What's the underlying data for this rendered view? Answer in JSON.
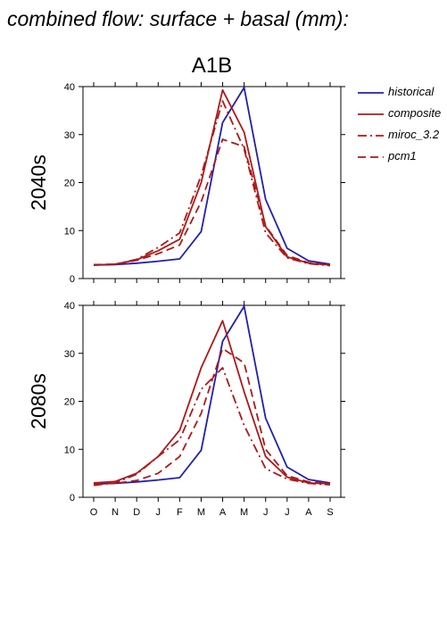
{
  "page_title": "combined flow: surface + basal (mm):",
  "colors": {
    "historical": "#2020b0",
    "future": "#b01818"
  },
  "legend": [
    {
      "name": "historical",
      "color": "#2020b0",
      "dash": ""
    },
    {
      "name": "composite",
      "color": "#b01818",
      "dash": ""
    },
    {
      "name": "miroc_3.2",
      "color": "#b01818",
      "dash": "10,4,2,4"
    },
    {
      "name": "pcm1",
      "color": "#b01818",
      "dash": "9,5"
    }
  ],
  "chart_data": [
    {
      "type": "line",
      "title": "A1B",
      "ylabel": "2040s",
      "categories": [
        "O",
        "N",
        "D",
        "J",
        "F",
        "M",
        "A",
        "M",
        "J",
        "J",
        "A",
        "S"
      ],
      "ylim": [
        0,
        40
      ],
      "yticks": [
        0,
        10,
        20,
        30,
        40
      ],
      "series": [
        {
          "name": "historical",
          "values": [
            2.8,
            2.9,
            3.2,
            3.6,
            4.1,
            9.8,
            32.5,
            39.8,
            16.5,
            6.3,
            3.7,
            3.0
          ]
        },
        {
          "name": "composite",
          "values": [
            2.8,
            3.0,
            3.9,
            5.8,
            8.2,
            20.0,
            39.3,
            30.5,
            10.8,
            4.5,
            3.2,
            2.8
          ]
        },
        {
          "name": "miroc_3.2",
          "values": [
            2.8,
            3.0,
            4.0,
            6.5,
            9.5,
            21.5,
            37.0,
            27.0,
            9.5,
            4.3,
            3.1,
            2.7
          ]
        },
        {
          "name": "pcm1",
          "values": [
            2.9,
            3.0,
            3.8,
            5.2,
            7.0,
            16.0,
            29.0,
            27.5,
            11.0,
            4.8,
            3.3,
            2.8
          ]
        }
      ]
    },
    {
      "type": "line",
      "title": "",
      "ylabel": "2080s",
      "categories": [
        "O",
        "N",
        "D",
        "J",
        "F",
        "M",
        "A",
        "M",
        "J",
        "J",
        "A",
        "S"
      ],
      "ylim": [
        0,
        40
      ],
      "yticks": [
        0,
        10,
        20,
        30,
        40
      ],
      "series": [
        {
          "name": "historical",
          "values": [
            2.8,
            2.9,
            3.2,
            3.6,
            4.1,
            9.8,
            32.5,
            39.8,
            16.5,
            6.3,
            3.7,
            3.0
          ]
        },
        {
          "name": "composite",
          "values": [
            3.0,
            3.3,
            5.0,
            8.5,
            14.0,
            27.0,
            36.8,
            22.0,
            8.5,
            4.2,
            3.0,
            2.8
          ]
        },
        {
          "name": "miroc_3.2",
          "values": [
            2.5,
            3.0,
            4.8,
            8.5,
            12.0,
            22.5,
            27.0,
            15.0,
            6.0,
            3.8,
            2.9,
            2.6
          ]
        },
        {
          "name": "pcm1",
          "values": [
            2.8,
            2.9,
            3.5,
            5.0,
            8.5,
            17.5,
            31.0,
            28.0,
            10.0,
            4.5,
            3.2,
            2.9
          ]
        }
      ]
    }
  ]
}
